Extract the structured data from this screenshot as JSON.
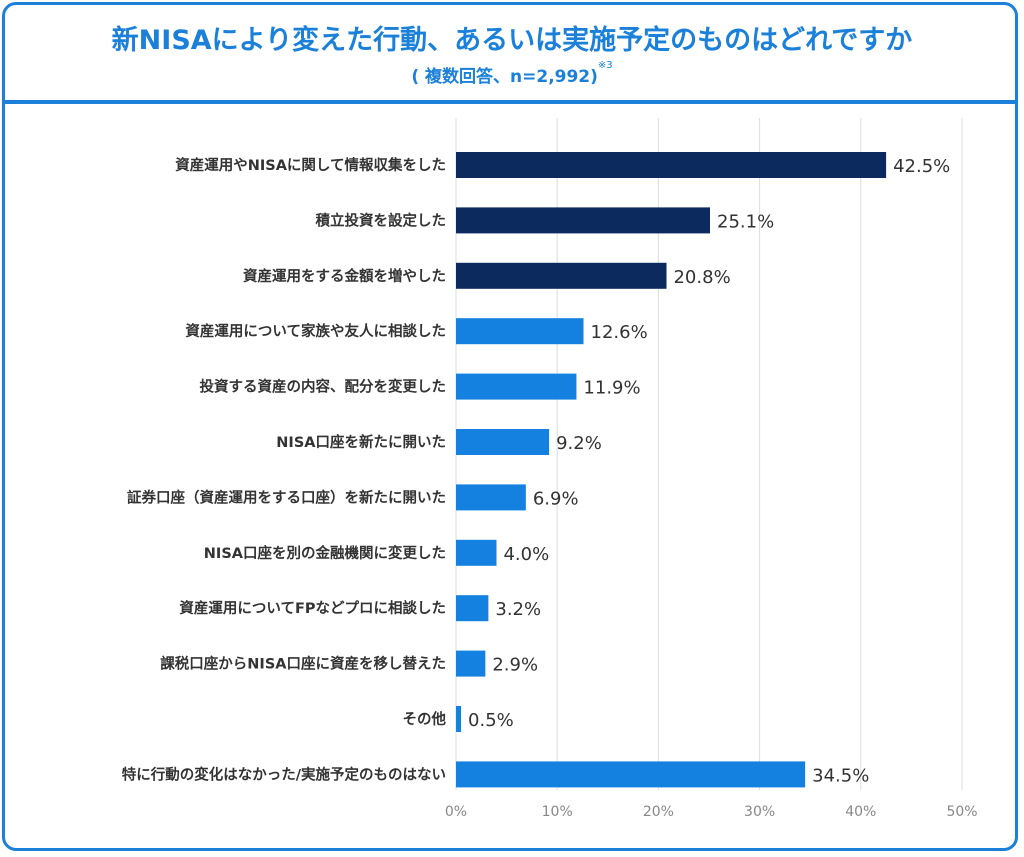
{
  "header": {
    "title": "新NISAにより変えた行動、あるいは実施予定のものはどれですか",
    "subtitle": "( 複数回答、n=2,992)",
    "subtitle_note": "※3"
  },
  "colors": {
    "accent": "#1a80d9",
    "bar_dark": "#0d2a5e",
    "bar_light": "#1481e0",
    "grid": "#dddddd",
    "text": "#333333"
  },
  "chart_data": {
    "type": "bar",
    "orientation": "horizontal",
    "title": "新NISAにより変えた行動、あるいは実施予定のものはどれですか",
    "subtitle": "( 複数回答、n=2,992)※3",
    "categories": [
      "資産運用やNISAに関して情報収集をした",
      "積立投資を設定した",
      "資産運用をする金額を増やした",
      "資産運用について家族や友人に相談した",
      "投資する資産の内容、配分を変更した",
      "NISA口座を新たに開いた",
      "証券口座（資産運用をする口座）を新たに開いた",
      "NISA口座を別の金融機関に変更した",
      "資産運用についてFPなどプロに相談した",
      "課税口座からNISA口座に資産を移し替えた",
      "その他",
      "特に行動の変化はなかった/実施予定のものはない"
    ],
    "values": [
      42.5,
      25.1,
      20.8,
      12.6,
      11.9,
      9.2,
      6.9,
      4.0,
      3.2,
      2.9,
      0.5,
      34.5
    ],
    "value_labels": [
      "42.5%",
      "25.1%",
      "20.8%",
      "12.6%",
      "11.9%",
      "9.2%",
      "6.9%",
      "4.0%",
      "3.2%",
      "2.9%",
      "0.5%",
      "34.5%"
    ],
    "highlight": [
      true,
      true,
      true,
      false,
      false,
      false,
      false,
      false,
      false,
      false,
      false,
      false
    ],
    "xlabel": "",
    "ylabel": "",
    "xlim": [
      0,
      50
    ],
    "xticks": [
      0,
      10,
      20,
      30,
      40,
      50
    ],
    "xtick_labels": [
      "0%",
      "10%",
      "20%",
      "30%",
      "40%",
      "50%"
    ],
    "grid": true,
    "legend": "none"
  }
}
